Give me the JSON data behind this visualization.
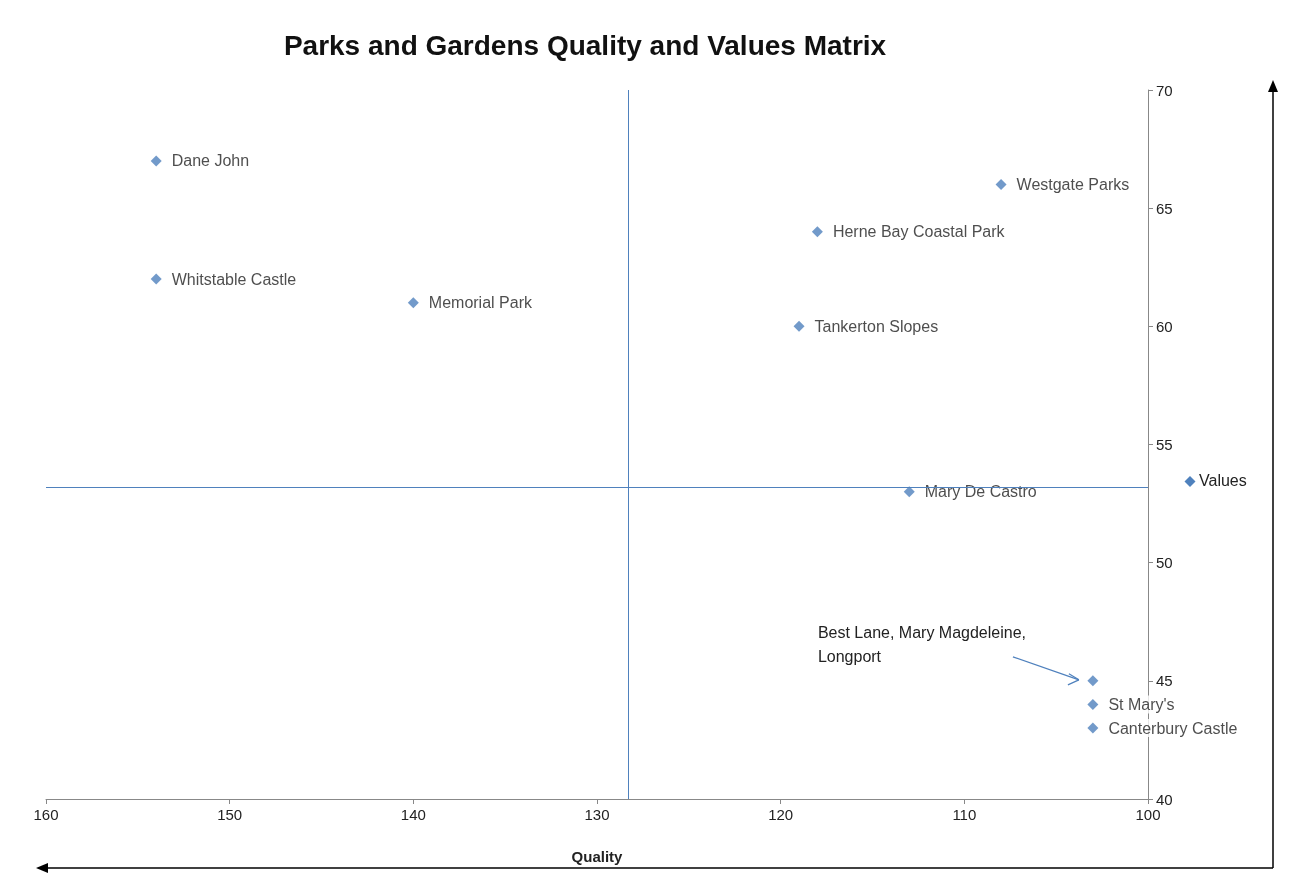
{
  "chart_data": {
    "type": "scatter",
    "title": "Parks and Gardens Quality and Values Matrix",
    "xlabel": "Quality",
    "ylabel": "Values",
    "x": [
      154,
      154,
      140,
      108,
      118,
      119,
      113,
      103,
      103,
      103
    ],
    "series": [
      {
        "color": "#4f81bd",
        "values": [
          67,
          62,
          61,
          66,
          64,
          60,
          53,
          45,
          44,
          43
        ],
        "value_labels": [
          "Dane John",
          "Whitstable Castle",
          "Memorial Park",
          "Westgate Parks",
          "Herne Bay Coastal Park",
          "Tankerton Slopes",
          "Mary De Castro",
          null,
          "St Mary's",
          "Canterbury Castle"
        ]
      }
    ],
    "annotations": [
      "Best Lane, Mary Magdeleine, Longport"
    ],
    "ref_lines": [
      {
        "axis": "x",
        "value": 128.3,
        "color": "#4f81bd"
      },
      {
        "axis": "y",
        "value": 53.2,
        "color": "#4f81bd"
      }
    ],
    "xlim": [
      160,
      100
    ],
    "xticks": [
      160,
      150,
      140,
      130,
      120,
      110,
      100
    ],
    "ylim": [
      40,
      70
    ],
    "yticks": [
      40,
      45,
      50,
      55,
      60,
      65,
      70
    ],
    "marker": "diamond",
    "grid": false
  }
}
